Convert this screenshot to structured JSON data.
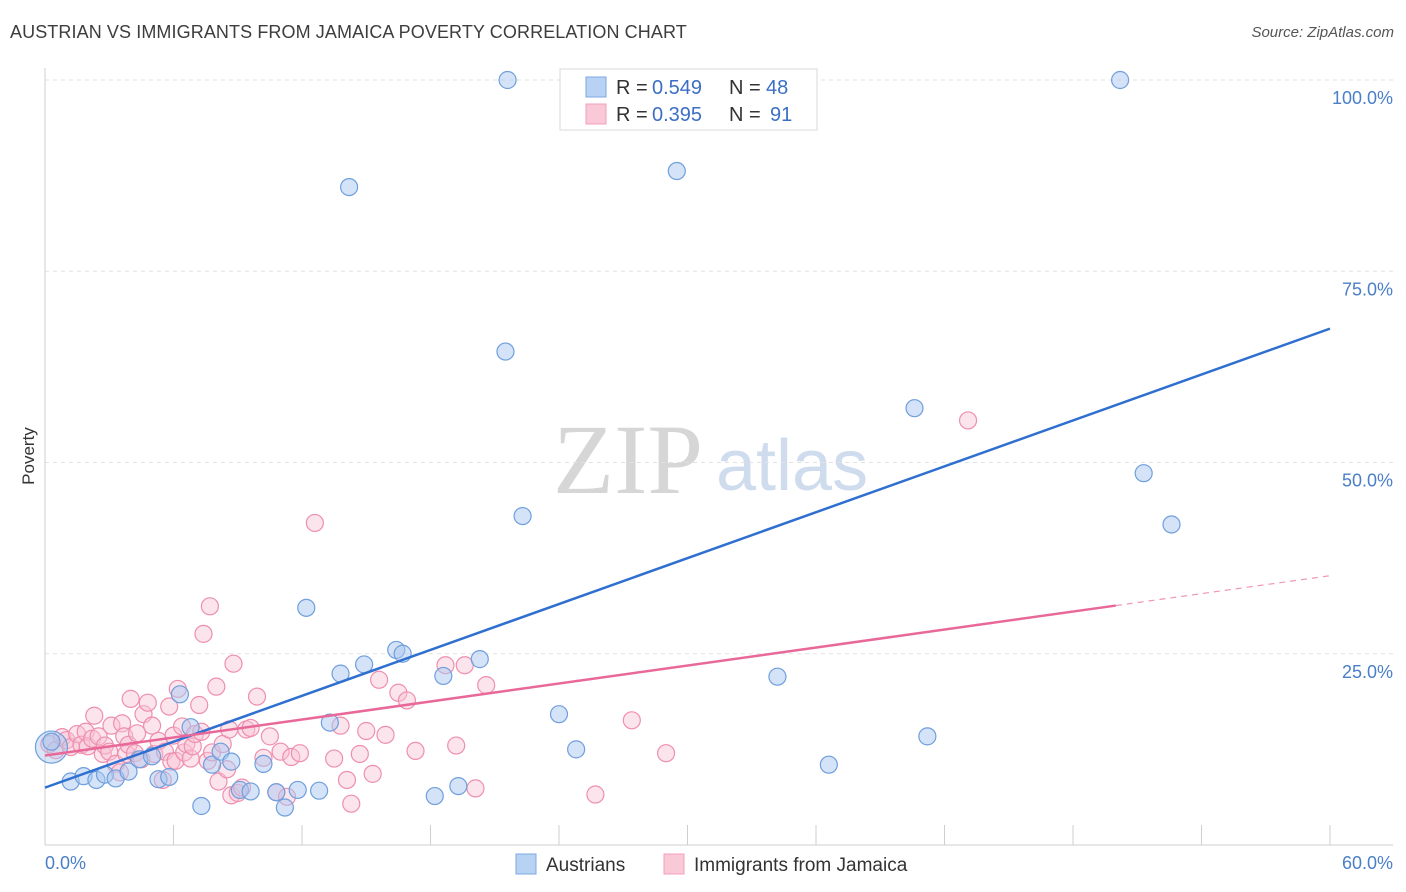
{
  "header": {
    "title": "AUSTRIAN VS IMMIGRANTS FROM JAMAICA POVERTY CORRELATION CHART",
    "source": "Source: ZipAtlas.com"
  },
  "watermark": {
    "zip": "ZIP",
    "atlas": "atlas"
  },
  "legend": {
    "rows": [
      {
        "r_label": "R =",
        "r_value": "0.549",
        "n_label": "N =",
        "n_value": "48",
        "color": "#8ab4e8"
      },
      {
        "r_label": "R =",
        "r_value": "0.395",
        "n_label": "N =",
        "n_value": "91",
        "color": "#f4a9c0"
      }
    ]
  },
  "bottom_legend": [
    "Austrians",
    "Immigrants from Jamaica"
  ],
  "chart_data": {
    "type": "scatter",
    "title": "AUSTRIAN VS IMMIGRANTS FROM JAMAICA POVERTY CORRELATION CHART",
    "xlabel": "",
    "ylabel": "Poverty",
    "xlim": [
      0,
      60
    ],
    "ylim": [
      0,
      100
    ],
    "x_tick_labels": [
      "0.0%",
      "60.0%"
    ],
    "y_tick_labels": [
      "100.0%",
      "75.0%",
      "50.0%",
      "25.0%"
    ],
    "y_ticks": [
      100,
      75,
      50,
      25
    ],
    "grid": true,
    "legend_position": "top-center",
    "colors": {
      "austrians_fill": "#a9c8f0",
      "austrians_stroke": "#6f9fdc",
      "austrians_line": "#2f6fd0",
      "jamaica_fill": "#f8c4d4",
      "jamaica_stroke": "#ee8fae",
      "jamaica_line": "#e8689a"
    },
    "series": [
      {
        "name": "Austrians",
        "points": [
          [
            0.3,
            13.5
          ],
          [
            1.2,
            8.3
          ],
          [
            1.8,
            9
          ],
          [
            2.4,
            8.5
          ],
          [
            2.8,
            9.2
          ],
          [
            3.3,
            8.7
          ],
          [
            3.9,
            9.6
          ],
          [
            4.4,
            11.2
          ],
          [
            5.0,
            11.6
          ],
          [
            5.3,
            8.6
          ],
          [
            5.8,
            8.9
          ],
          [
            6.3,
            19.7
          ],
          [
            6.8,
            15.4
          ],
          [
            7.3,
            5.1
          ],
          [
            7.8,
            10.5
          ],
          [
            8.2,
            12.2
          ],
          [
            8.7,
            10.9
          ],
          [
            9.1,
            7.2
          ],
          [
            9.6,
            7.0
          ],
          [
            10.2,
            10.6
          ],
          [
            10.8,
            6.9
          ],
          [
            11.2,
            4.9
          ],
          [
            11.8,
            7.2
          ],
          [
            12.2,
            31.0
          ],
          [
            12.8,
            7.1
          ],
          [
            13.3,
            16.0
          ],
          [
            13.8,
            22.4
          ],
          [
            14.2,
            86.0
          ],
          [
            14.9,
            23.6
          ],
          [
            16.4,
            25.5
          ],
          [
            16.7,
            25.0
          ],
          [
            18.2,
            6.4
          ],
          [
            18.6,
            22.1
          ],
          [
            19.3,
            7.7
          ],
          [
            20.3,
            24.3
          ],
          [
            21.5,
            64.5
          ],
          [
            21.6,
            100.0
          ],
          [
            22.3,
            43.0
          ],
          [
            24.0,
            17.1
          ],
          [
            24.8,
            12.5
          ],
          [
            29.5,
            88.1
          ],
          [
            34.2,
            22.0
          ],
          [
            36.6,
            10.5
          ],
          [
            40.6,
            57.1
          ],
          [
            41.2,
            14.2
          ],
          [
            50.2,
            100.0
          ],
          [
            51.3,
            48.6
          ],
          [
            52.6,
            41.9
          ]
        ],
        "trend": {
          "x0": 0,
          "y0": 7.5,
          "x1": 60,
          "y1": 67.5
        }
      },
      {
        "name": "Immigrants from Jamaica",
        "points": [
          [
            0.2,
            13.2
          ],
          [
            0.5,
            12.4
          ],
          [
            0.8,
            14.1
          ],
          [
            1.0,
            13.7
          ],
          [
            1.2,
            12.8
          ],
          [
            1.5,
            14.5
          ],
          [
            1.7,
            13.1
          ],
          [
            1.9,
            14.8
          ],
          [
            2.0,
            12.9
          ],
          [
            2.2,
            13.9
          ],
          [
            2.3,
            16.9
          ],
          [
            2.5,
            14.2
          ],
          [
            2.7,
            11.9
          ],
          [
            2.8,
            13.0
          ],
          [
            3.0,
            12.2
          ],
          [
            3.1,
            15.6
          ],
          [
            3.3,
            10.6
          ],
          [
            3.5,
            9.5
          ],
          [
            3.6,
            15.9
          ],
          [
            3.7,
            14.2
          ],
          [
            3.8,
            11.9
          ],
          [
            3.9,
            13.1
          ],
          [
            4.0,
            19.1
          ],
          [
            4.2,
            12.0
          ],
          [
            4.3,
            14.6
          ],
          [
            4.5,
            11.2
          ],
          [
            4.6,
            17.1
          ],
          [
            4.8,
            18.6
          ],
          [
            5.0,
            15.6
          ],
          [
            5.1,
            11.9
          ],
          [
            5.3,
            13.6
          ],
          [
            5.5,
            8.5
          ],
          [
            5.6,
            12.2
          ],
          [
            5.8,
            18.1
          ],
          [
            5.9,
            10.9
          ],
          [
            6.0,
            14.3
          ],
          [
            6.1,
            11.0
          ],
          [
            6.2,
            20.4
          ],
          [
            6.4,
            15.5
          ],
          [
            6.5,
            12.1
          ],
          [
            6.6,
            13.2
          ],
          [
            6.8,
            11.3
          ],
          [
            6.9,
            12.9
          ],
          [
            7.0,
            14.5
          ],
          [
            7.2,
            18.3
          ],
          [
            7.3,
            14.8
          ],
          [
            7.4,
            27.6
          ],
          [
            7.6,
            11.0
          ],
          [
            7.7,
            31.2
          ],
          [
            7.8,
            12.1
          ],
          [
            8.0,
            20.7
          ],
          [
            8.1,
            8.3
          ],
          [
            8.3,
            13.2
          ],
          [
            8.5,
            9.9
          ],
          [
            8.6,
            15.1
          ],
          [
            8.7,
            6.5
          ],
          [
            8.8,
            23.7
          ],
          [
            9.0,
            6.8
          ],
          [
            9.2,
            7.5
          ],
          [
            9.4,
            15.1
          ],
          [
            9.6,
            15.3
          ],
          [
            9.9,
            19.4
          ],
          [
            10.2,
            11.4
          ],
          [
            10.5,
            14.2
          ],
          [
            10.8,
            6.9
          ],
          [
            11.0,
            12.2
          ],
          [
            11.3,
            6.3
          ],
          [
            11.5,
            11.5
          ],
          [
            11.9,
            12.0
          ],
          [
            12.6,
            42.1
          ],
          [
            13.5,
            11.3
          ],
          [
            13.8,
            15.6
          ],
          [
            14.1,
            8.5
          ],
          [
            14.3,
            5.4
          ],
          [
            14.7,
            11.9
          ],
          [
            15.0,
            14.9
          ],
          [
            15.3,
            9.3
          ],
          [
            15.6,
            21.6
          ],
          [
            15.9,
            14.4
          ],
          [
            16.5,
            19.9
          ],
          [
            16.9,
            18.9
          ],
          [
            17.3,
            12.3
          ],
          [
            18.7,
            23.5
          ],
          [
            19.2,
            13.0
          ],
          [
            19.6,
            23.5
          ],
          [
            20.1,
            7.4
          ],
          [
            20.6,
            20.9
          ],
          [
            25.7,
            6.6
          ],
          [
            27.4,
            16.3
          ],
          [
            43.1,
            55.5
          ],
          [
            29.0,
            12.0
          ]
        ],
        "trend": {
          "x0": 0,
          "y0": 11.7,
          "x1": 50,
          "y1": 31.3,
          "dashed_to_x": 60,
          "dashed_to_y": 35.2
        }
      }
    ]
  }
}
